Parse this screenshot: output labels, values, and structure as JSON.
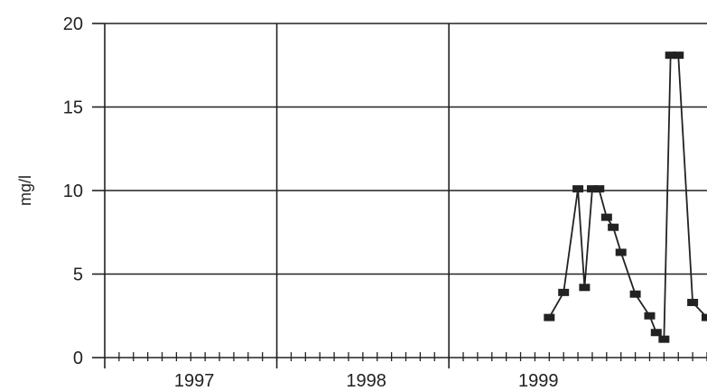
{
  "chart_data": {
    "type": "line",
    "title": "",
    "xlabel": "",
    "ylabel": "mg/l",
    "ylim": [
      0,
      20
    ],
    "y_ticks": [
      0,
      5,
      10,
      15,
      20
    ],
    "x_ticks": [
      "1997",
      "1998",
      "1999"
    ],
    "xlim": [
      "1996-07",
      "2000-01"
    ],
    "grid": true,
    "legend": "none",
    "marker": "square",
    "line_color": "#222222",
    "series": [
      {
        "x": [
          "1999-02",
          "1999-03",
          "1999-04",
          "1999-04-15",
          "1999-05",
          "1999-05-15",
          "1999-06",
          "1999-06-15",
          "1999-07",
          "1999-08",
          "1999-09",
          "1999-09-15",
          "1999-10",
          "1999-10-15",
          "1999-11",
          "1999-12",
          "2000-01"
        ],
        "values": [
          2.4,
          3.9,
          10.1,
          4.2,
          10.1,
          10.1,
          8.4,
          7.8,
          6.3,
          3.8,
          2.5,
          1.5,
          1.1,
          18.1,
          18.1,
          3.3,
          2.4
        ]
      }
    ]
  }
}
